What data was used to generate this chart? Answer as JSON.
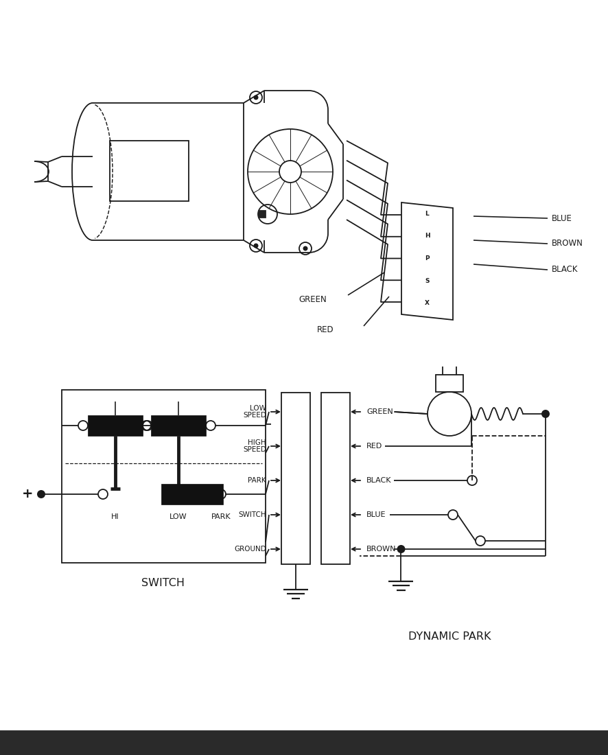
{
  "bg_color": "#ffffff",
  "lc": "#1a1a1a",
  "lw": 1.3,
  "title_switch": "SWITCH",
  "title_dynamic": "DYNAMIC PARK",
  "connector_labels": [
    "LOW\nSPEED",
    "HIGH\nSPEED",
    "PARK",
    "SWITCH",
    "GROUND"
  ],
  "wire_labels_right": [
    "GREEN",
    "RED",
    "BLACK",
    "BLUE",
    "BROWN"
  ],
  "top_wire_labels": [
    "BLUE",
    "BROWN",
    "BLACK",
    "GREEN",
    "RED"
  ],
  "switch_labels": [
    "HI",
    "LOW",
    "PARK"
  ],
  "bottom_bar_color": "#333333",
  "switch_block_color": "#111111",
  "font_size_label": 8.5,
  "font_size_title": 11.5
}
